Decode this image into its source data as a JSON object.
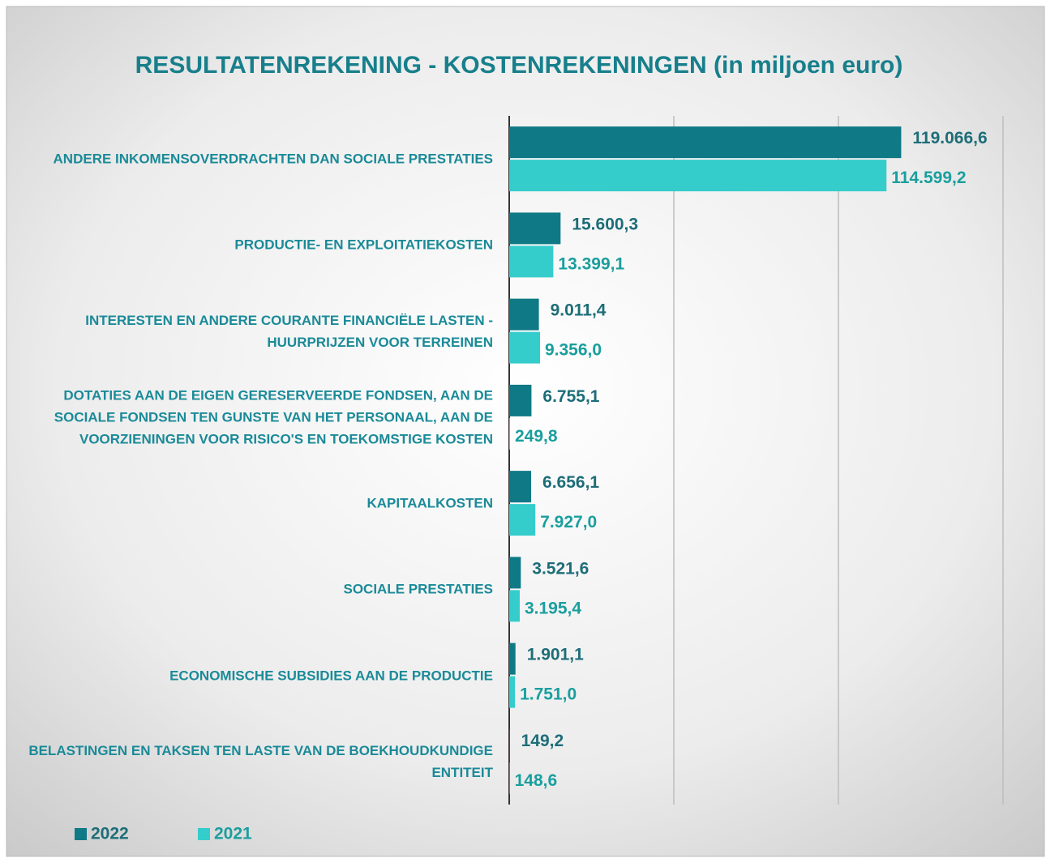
{
  "chart_data": {
    "type": "hbar",
    "title": "RESULTATENREKENING - KOSTENREKENINGEN (in miljoen euro)",
    "categories": [
      "ANDERE INKOMENSOVERDRACHTEN DAN SOCIALE PRESTATIES",
      "PRODUCTIE- EN EXPLOITATIEKOSTEN",
      "INTERESTEN EN ANDERE COURANTE FINANCIËLE LASTEN - HUURPRIJZEN VOOR TERREINEN",
      "DOTATIES AAN DE EIGEN GERESERVEERDE FONDSEN, AAN DE SOCIALE FONDSEN TEN GUNSTE VAN HET PERSONAAL, AAN DE VOORZIENINGEN VOOR RISICO'S EN TOEKOMSTIGE KOSTEN",
      "KAPITAALKOSTEN",
      "SOCIALE PRESTATIES",
      "ECONOMISCHE SUBSIDIES AAN DE PRODUCTIE",
      "BELASTINGEN EN TAKSEN TEN LASTE VAN DE BOEKHOUDKUNDIGE ENTITEIT"
    ],
    "series": [
      {
        "name": "2022",
        "color": "#0f7986",
        "label_color": "#1d6d78",
        "values": [
          119066.6,
          15600.3,
          9011.4,
          6755.1,
          6656.1,
          3521.6,
          1901.1,
          149.2
        ],
        "value_labels": [
          "119.066,6",
          "15.600,3",
          "9.011,4",
          "6.755,1",
          "6.656,1",
          "3.521,6",
          "1.901,1",
          "149,2"
        ]
      },
      {
        "name": "2021",
        "color": "#35cccc",
        "label_color": "#1a9e9e",
        "values": [
          114599.2,
          13399.1,
          9356.0,
          249.8,
          7927.0,
          3195.4,
          1751.0,
          148.6
        ],
        "value_labels": [
          "114.599,2",
          "13.399,1",
          "9.356,0",
          "249,8",
          "7.927,0",
          "3.195,4",
          "1.751,0",
          "148,6"
        ]
      }
    ],
    "xlim": [
      0,
      150000
    ],
    "xticks": [
      0,
      50000,
      100000,
      150000
    ],
    "grid": true,
    "legend": "bottom-left"
  }
}
